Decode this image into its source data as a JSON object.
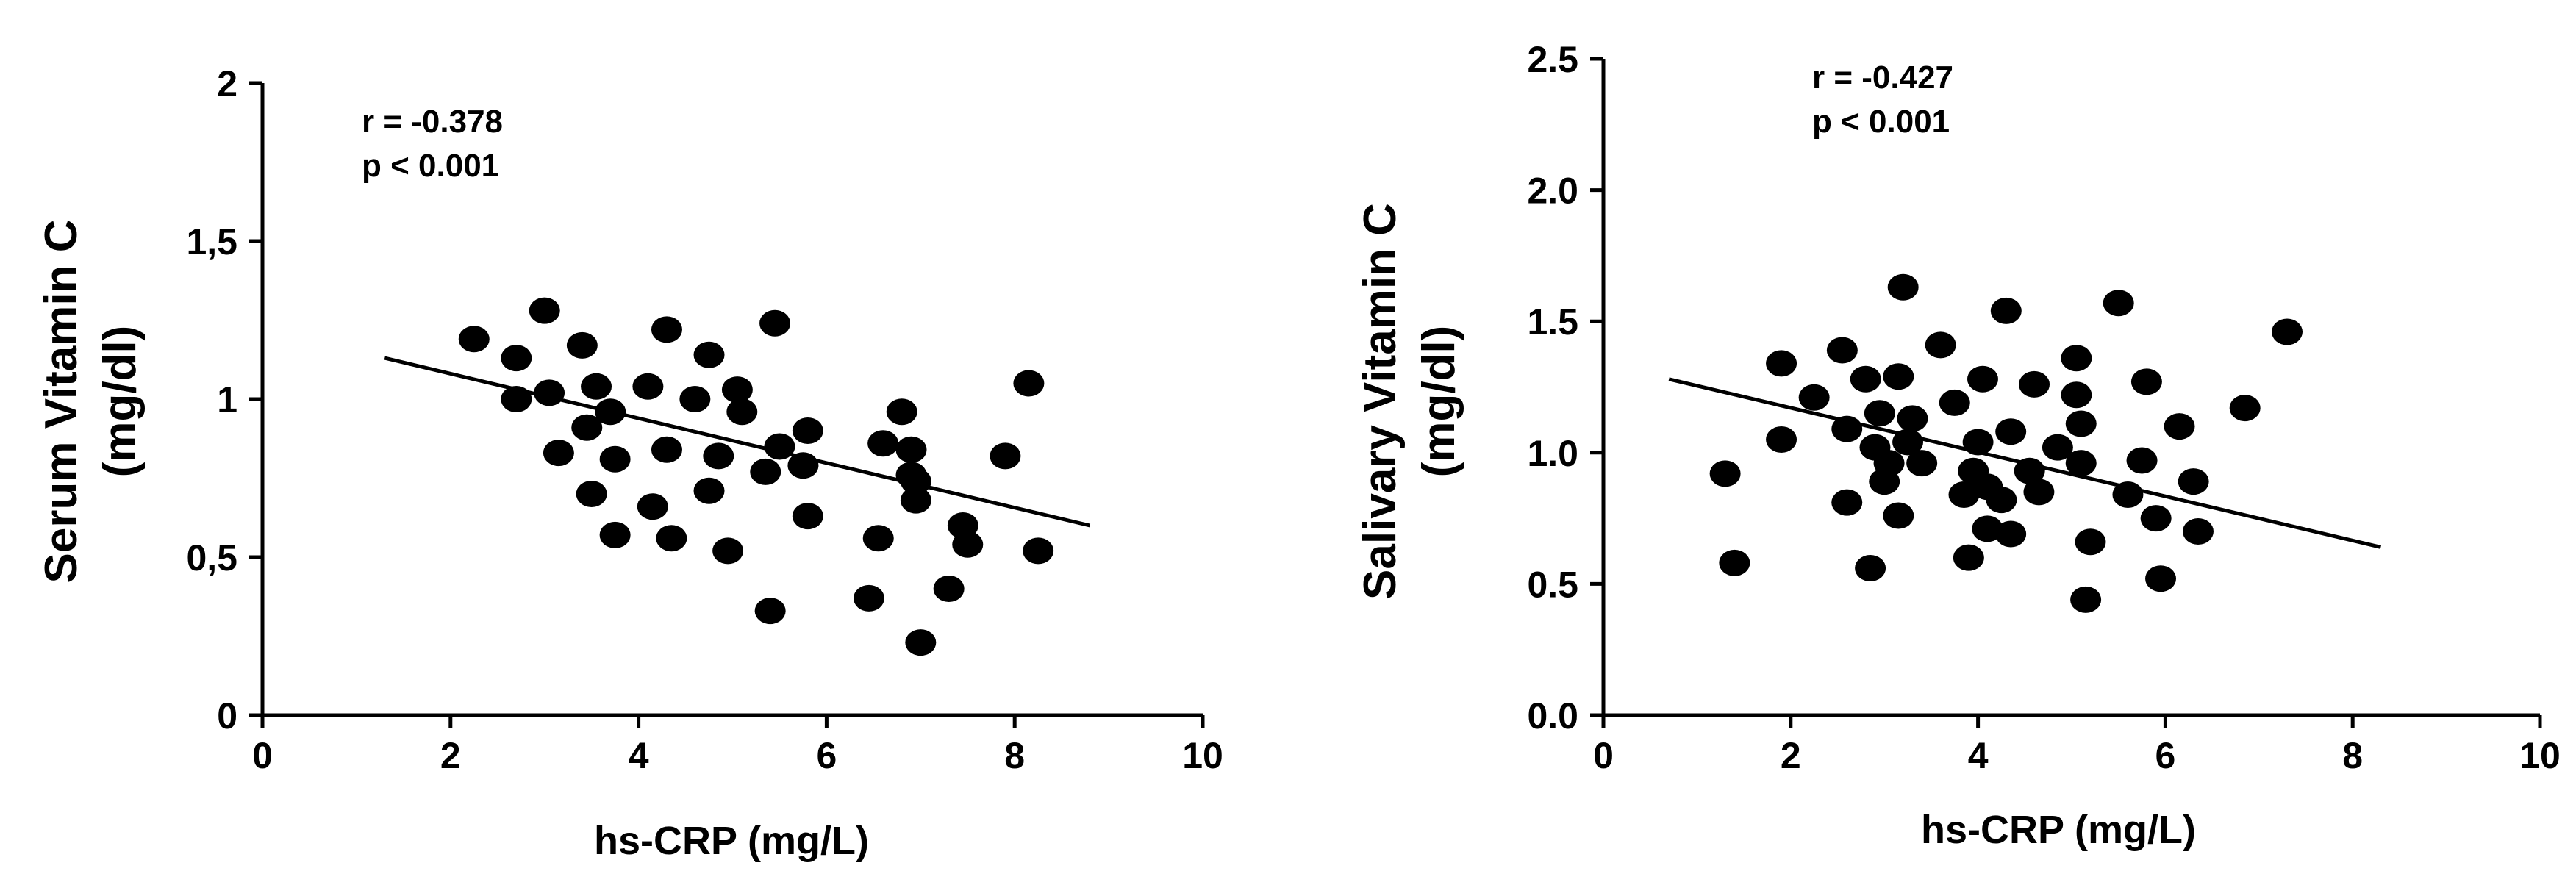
{
  "chart_data": [
    {
      "type": "scatter",
      "title": "",
      "xlabel": "hs-CRP (mg/L)",
      "ylabel": "Serum Vitamin C",
      "ylabel_units": "(mg/dl)",
      "xlim": [
        0,
        10
      ],
      "ylim": [
        0,
        2
      ],
      "xticks": [
        0,
        2,
        4,
        6,
        8,
        10
      ],
      "xtick_labels": [
        "0",
        "2",
        "4",
        "6",
        "8",
        "10"
      ],
      "yticks": [
        0,
        0.5,
        1,
        1.5,
        2
      ],
      "ytick_labels": [
        "0",
        "0,5",
        "1",
        "1,5",
        "2"
      ],
      "grid": false,
      "annotations": [
        "r = -0.378",
        "p < 0.001"
      ],
      "regression": {
        "x": [
          1.3,
          8.8
        ],
        "y": [
          1.13,
          0.6
        ]
      },
      "points": {
        "x": [
          2.25,
          2.7,
          2.7,
          3.0,
          3.05,
          3.15,
          3.4,
          3.45,
          3.5,
          3.55,
          3.7,
          3.75,
          3.75,
          4.1,
          4.15,
          4.3,
          4.3,
          4.35,
          4.6,
          4.75,
          4.75,
          4.85,
          4.95,
          5.05,
          5.1,
          5.35,
          5.4,
          5.45,
          5.5,
          5.75,
          5.8,
          5.8,
          6.45,
          6.55,
          6.6,
          6.8,
          6.9,
          6.9,
          6.95,
          6.95,
          7.0,
          7.3,
          7.45,
          7.5,
          7.9,
          8.15,
          8.25
        ],
        "y": [
          1.19,
          1.13,
          1.0,
          1.28,
          1.02,
          0.83,
          1.17,
          0.91,
          0.7,
          1.04,
          0.96,
          0.81,
          0.57,
          1.04,
          0.66,
          1.22,
          0.84,
          0.56,
          1.0,
          1.14,
          0.71,
          0.82,
          0.52,
          1.03,
          0.96,
          0.77,
          0.33,
          1.24,
          0.85,
          0.79,
          0.9,
          0.63,
          0.37,
          0.56,
          0.86,
          0.96,
          0.84,
          0.76,
          0.74,
          0.68,
          0.23,
          0.4,
          0.6,
          0.54,
          0.82,
          1.05,
          0.52
        ]
      }
    },
    {
      "type": "scatter",
      "title": "",
      "xlabel": "hs-CRP (mg/L)",
      "ylabel": "Salivary Vitamin C",
      "ylabel_units": "(mg/dl)",
      "xlim": [
        0,
        10
      ],
      "ylim": [
        0,
        2.5
      ],
      "xticks": [
        0,
        2,
        4,
        6,
        8,
        10
      ],
      "xtick_labels": [
        "0",
        "2",
        "4",
        "6",
        "8",
        "10"
      ],
      "yticks": [
        0,
        0.5,
        1,
        1.5,
        2,
        2.5
      ],
      "ytick_labels": [
        "0.0",
        "0.5",
        "1.0",
        "1.5",
        "2.0",
        "2.5"
      ],
      "grid": false,
      "annotations": [
        "r = -0.427",
        "p < 0.001"
      ],
      "regression": {
        "x": [
          0.7,
          8.3
        ],
        "y": [
          1.28,
          0.64
        ]
      },
      "points": {
        "x": [
          1.3,
          1.4,
          1.9,
          1.9,
          2.25,
          2.55,
          2.6,
          2.6,
          2.8,
          2.85,
          2.9,
          2.95,
          3.0,
          3.05,
          3.15,
          3.15,
          3.2,
          3.25,
          3.3,
          3.4,
          3.6,
          3.75,
          3.85,
          3.9,
          3.95,
          4.0,
          4.05,
          4.1,
          4.1,
          4.25,
          4.3,
          4.35,
          4.35,
          4.55,
          4.6,
          4.65,
          4.85,
          5.05,
          5.05,
          5.1,
          5.1,
          5.15,
          5.2,
          5.5,
          5.6,
          5.75,
          5.8,
          5.9,
          5.95,
          6.15,
          6.3,
          6.35,
          6.85,
          7.3
        ],
        "y": [
          0.92,
          0.58,
          1.34,
          1.05,
          1.21,
          1.39,
          1.09,
          0.81,
          1.28,
          0.56,
          1.02,
          1.15,
          0.89,
          0.96,
          1.29,
          0.76,
          1.63,
          1.04,
          1.13,
          0.96,
          1.41,
          1.19,
          0.84,
          0.6,
          0.93,
          1.04,
          1.28,
          0.87,
          0.71,
          0.82,
          1.54,
          1.08,
          0.69,
          0.93,
          1.26,
          0.85,
          1.02,
          1.36,
          1.22,
          1.11,
          0.96,
          0.44,
          0.66,
          1.57,
          0.84,
          0.97,
          1.27,
          0.75,
          0.52,
          1.1,
          0.89,
          0.7,
          1.17,
          1.46
        ]
      }
    }
  ]
}
